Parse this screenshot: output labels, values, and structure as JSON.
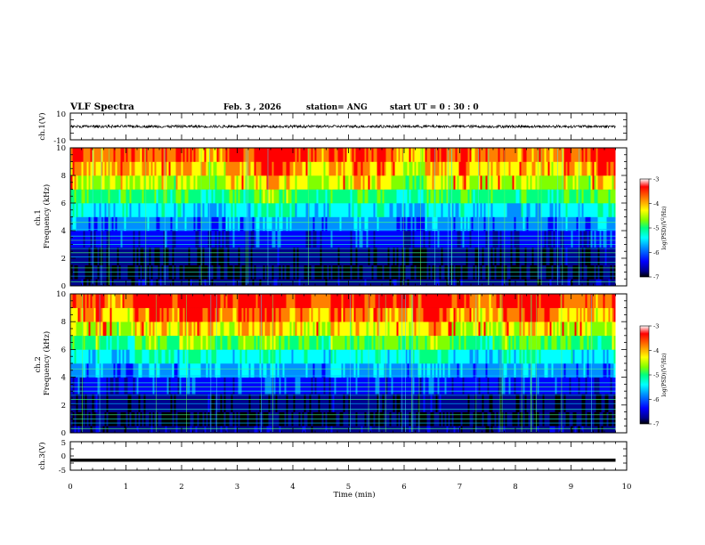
{
  "header": {
    "title": "VLF Spectra",
    "date": "Feb. 3  , 2026",
    "station": "station= ANG",
    "start": "start  UT =   0  : 30 : 0"
  },
  "chart_data": {
    "type": "heatmap",
    "xlabel": "Time  (min)",
    "xlim": [
      0,
      10
    ],
    "x_ticks": [
      0,
      1,
      2,
      3,
      4,
      5,
      6,
      7,
      8,
      9,
      10
    ],
    "data_end_min": 9.8,
    "panels": [
      {
        "id": "ch1-waveform",
        "type": "line",
        "ylabel": "ch.1(V)",
        "ylim": [
          -10,
          10
        ],
        "y_ticks": [
          10,
          -10
        ],
        "baseline_v": 0,
        "noise_amplitude_v": 2
      },
      {
        "id": "ch1-spectrogram",
        "type": "heatmap",
        "ylabel": "ch.1\nFrequency  (kHz)",
        "ylim": [
          0,
          10
        ],
        "y_ticks": [
          0,
          2,
          4,
          6,
          8,
          10
        ],
        "value_label": "log(PSD)(V²/Hz)",
        "value_range": [
          -7,
          -3
        ],
        "colorbar_ticks": [
          -3,
          -4,
          -5,
          -6,
          -7
        ]
      },
      {
        "id": "ch2-spectrogram",
        "type": "heatmap",
        "ylabel": "ch.2\nFrequency  (kHz)",
        "ylim": [
          0,
          10
        ],
        "y_ticks": [
          0,
          2,
          4,
          6,
          8,
          10
        ],
        "value_label": "log(PSD)(V²/Hz)",
        "value_range": [
          -7,
          -3
        ],
        "colorbar_ticks": [
          -3,
          -4,
          -5,
          -6,
          -7
        ]
      },
      {
        "id": "ch3-waveform",
        "type": "line",
        "ylabel": "ch.3(V)",
        "ylim": [
          -5,
          5
        ],
        "y_ticks": [
          5,
          0,
          -5
        ],
        "baseline_v": -1.5
      }
    ]
  },
  "colormap": [
    "#000000",
    "#00008c",
    "#0000ff",
    "#0090ff",
    "#00ffff",
    "#00ff80",
    "#80ff00",
    "#ffff00",
    "#ff8000",
    "#ff0000",
    "#ffffff"
  ]
}
